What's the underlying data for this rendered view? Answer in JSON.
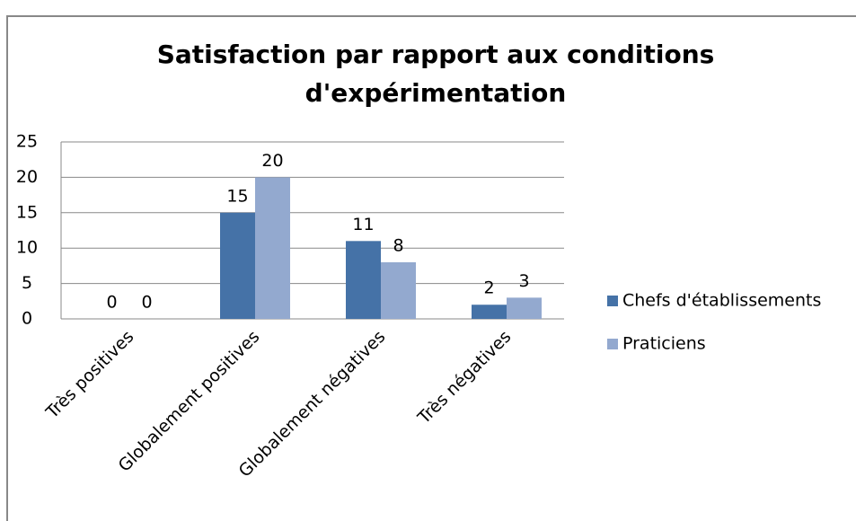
{
  "chart_data": {
    "type": "bar",
    "title": [
      "Satisfaction par rapport aux conditions",
      "d'expérimentation"
    ],
    "categories": [
      "Très positives",
      "Globalement positives",
      "Globalement négatives",
      "Très négatives"
    ],
    "series": [
      {
        "name": "Chefs d'établissements",
        "color": "#4572a7",
        "values": [
          0,
          15,
          11,
          2
        ]
      },
      {
        "name": "Praticiens",
        "color": "#93a9cf",
        "values": [
          0,
          20,
          8,
          3
        ]
      }
    ],
    "ylim": [
      0,
      25
    ],
    "yticks": [
      0,
      5,
      10,
      15,
      20,
      25
    ],
    "grid": true,
    "legend": "right"
  }
}
